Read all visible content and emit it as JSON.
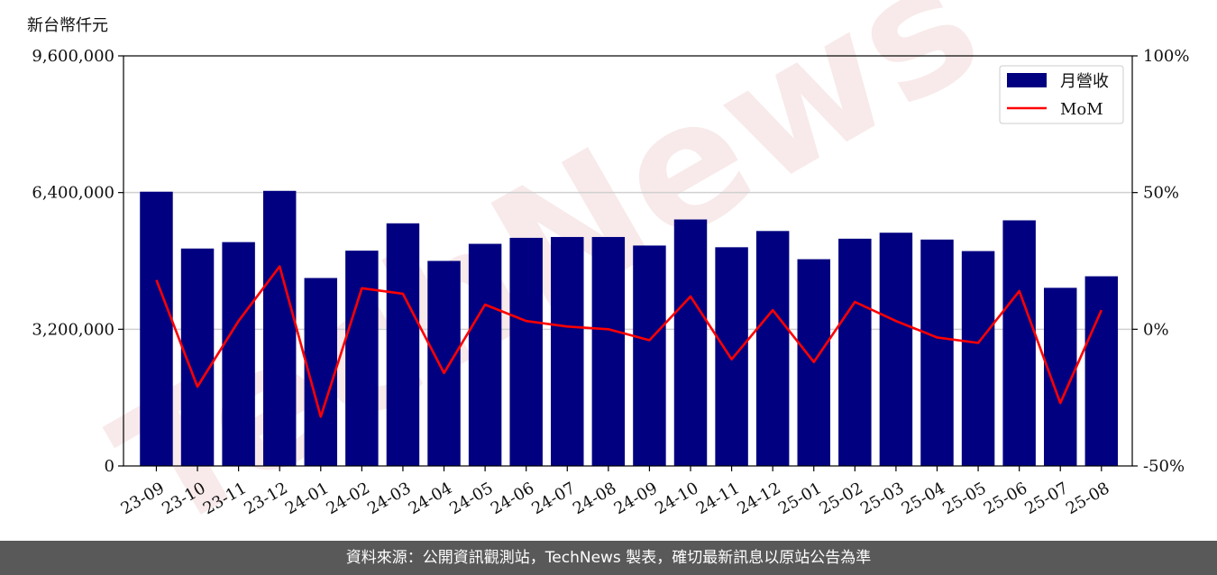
{
  "unit_label": "新台幣仟元",
  "footer_text": "資料來源：公開資訊觀測站，TechNews 製表，確切最新訊息以原站公告為準",
  "watermark": "TechNews",
  "colors": {
    "bar": "#000080",
    "line": "#ff0000",
    "grid": "#d0d0d0",
    "footer_bg": "#595959"
  },
  "chart_data": {
    "type": "bar",
    "categories": [
      "23-09",
      "23-10",
      "23-11",
      "23-12",
      "24-01",
      "24-02",
      "24-03",
      "24-04",
      "24-05",
      "24-06",
      "24-07",
      "24-08",
      "24-09",
      "24-10",
      "24-11",
      "24-12",
      "25-01",
      "25-02",
      "25-03",
      "25-04",
      "25-05",
      "25-06",
      "25-07",
      "25-08"
    ],
    "series": [
      {
        "name": "月營收",
        "type": "bar",
        "axis": "left",
        "values": [
          6420000,
          5090000,
          5240000,
          6440000,
          4400000,
          5040000,
          5680000,
          4800000,
          5200000,
          5340000,
          5360000,
          5360000,
          5160000,
          5770000,
          5120000,
          5500000,
          4840000,
          5320000,
          5460000,
          5300000,
          5030000,
          5750000,
          4170000,
          4440000
        ]
      },
      {
        "name": "MoM",
        "type": "line",
        "axis": "right",
        "values": [
          18,
          -21,
          3,
          23,
          -32,
          15,
          13,
          -16,
          9,
          3,
          1,
          0,
          -4,
          12,
          -11,
          7,
          -12,
          10,
          3,
          -3,
          -5,
          14,
          -27,
          7
        ]
      }
    ],
    "y_left": {
      "ylim": [
        0,
        9600000
      ],
      "ticks": [
        "0",
        "3,200,000",
        "6,400,000",
        "9,600,000"
      ],
      "tick_values": [
        0,
        3200000,
        6400000,
        9600000
      ]
    },
    "y_right": {
      "ylim": [
        -50,
        100
      ],
      "ticks": [
        "-50%",
        "0%",
        "50%",
        "100%"
      ],
      "tick_values": [
        -50,
        0,
        50,
        100
      ]
    },
    "grid": "horizontal",
    "legend": "top-right"
  }
}
